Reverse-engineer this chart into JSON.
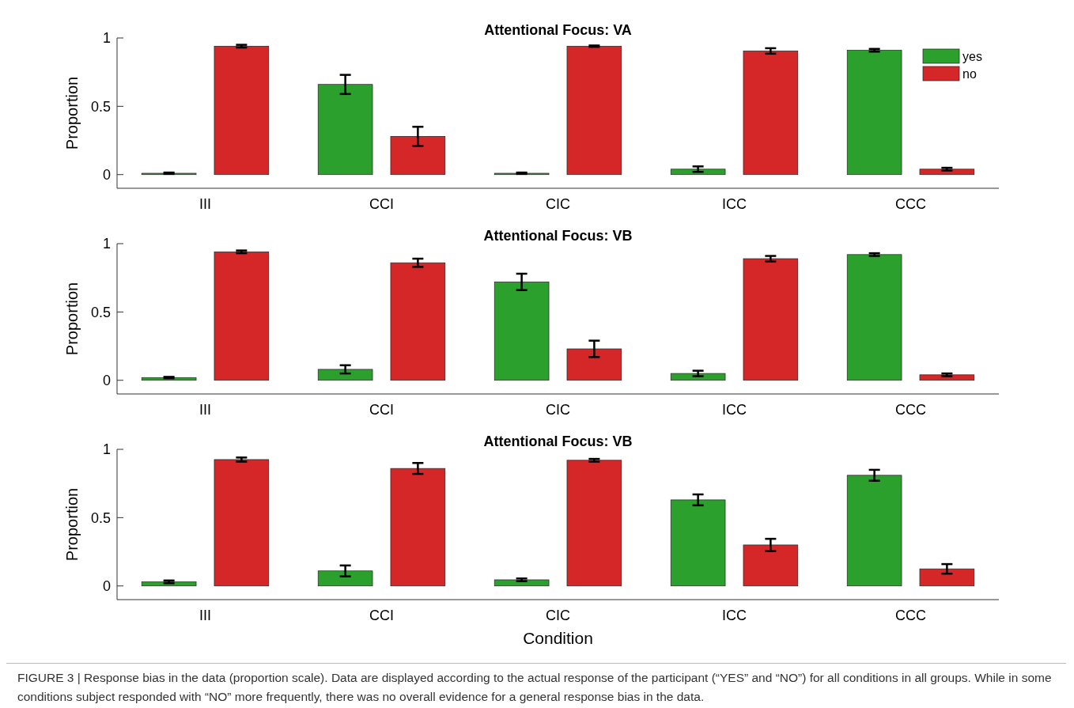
{
  "chart_data": [
    {
      "type": "bar",
      "title": "Attentional Focus: VA",
      "ylabel": "Proportion",
      "categories": [
        "III",
        "CCI",
        "CIC",
        "ICC",
        "CCC"
      ],
      "ylim": [
        -0.1,
        1
      ],
      "yticks": [
        0,
        0.5,
        1
      ],
      "legend": "top right",
      "grid": false,
      "series": [
        {
          "name": "yes",
          "color": "#2ca02c",
          "values": [
            0.01,
            0.66,
            0.01,
            0.04,
            0.91
          ],
          "errors": [
            0.005,
            0.07,
            0.005,
            0.02,
            0.01
          ]
        },
        {
          "name": "no",
          "color": "#d62728",
          "values": [
            0.94,
            0.28,
            0.94,
            0.905,
            0.04
          ],
          "errors": [
            0.01,
            0.07,
            0.005,
            0.02,
            0.01
          ]
        }
      ]
    },
    {
      "type": "bar",
      "title": "Attentional Focus: VB",
      "ylabel": "Proportion",
      "categories": [
        "III",
        "CCI",
        "CIC",
        "ICC",
        "CCC"
      ],
      "ylim": [
        -0.1,
        1
      ],
      "yticks": [
        0,
        0.5,
        1
      ],
      "grid": false,
      "series": [
        {
          "color": "#2ca02c",
          "values": [
            0.02,
            0.08,
            0.72,
            0.05,
            0.92
          ],
          "errors": [
            0.005,
            0.03,
            0.06,
            0.02,
            0.01
          ]
        },
        {
          "color": "#d62728",
          "values": [
            0.94,
            0.86,
            0.23,
            0.89,
            0.04
          ],
          "errors": [
            0.01,
            0.03,
            0.06,
            0.02,
            0.01
          ]
        }
      ]
    },
    {
      "type": "bar",
      "title": "Attentional Focus: VB",
      "ylabel": "Proportion",
      "xlabel": "Condition",
      "categories": [
        "III",
        "CCI",
        "CIC",
        "ICC",
        "CCC"
      ],
      "ylim": [
        -0.1,
        1
      ],
      "yticks": [
        0,
        0.5,
        1
      ],
      "grid": false,
      "annotations": [
        "FIGURE 3 | Response bias in the data (proportion scale). Data are displayed according to the actual response of the participant (“YES” and “NO”) for all conditions in all groups. While in some conditions subject responded with “NO” more frequently, there was no overall evidence for a general response bias in the data."
      ],
      "series": [
        {
          "color": "#2ca02c",
          "values": [
            0.03,
            0.11,
            0.045,
            0.63,
            0.81
          ],
          "errors": [
            0.01,
            0.04,
            0.01,
            0.04,
            0.04
          ]
        },
        {
          "color": "#d62728",
          "values": [
            0.925,
            0.86,
            0.92,
            0.3,
            0.125
          ],
          "errors": [
            0.015,
            0.04,
            0.01,
            0.045,
            0.035
          ]
        }
      ]
    }
  ]
}
